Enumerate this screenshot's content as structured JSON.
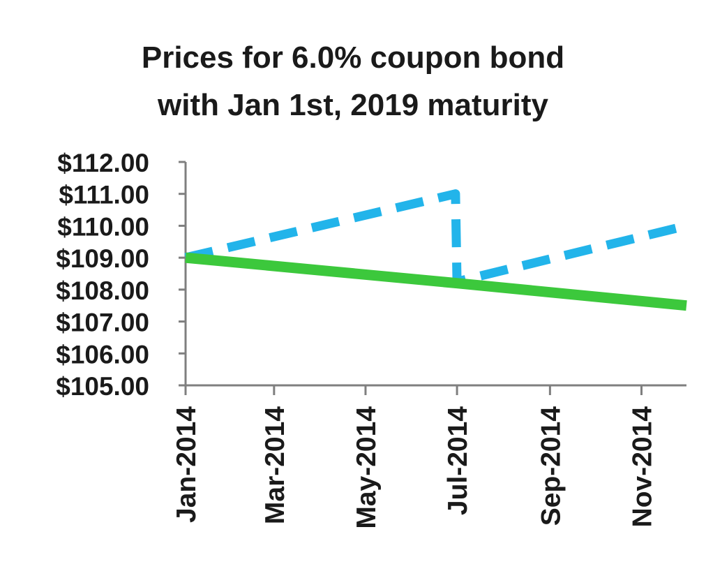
{
  "chart_data": {
    "type": "line",
    "title_lines": [
      "Prices for 6.0% coupon  bond",
      "with Jan 1st, 2019 maturity"
    ],
    "xlabel": "",
    "ylabel": "",
    "x_tick_labels": [
      "Jan-2014",
      "Mar-2014",
      "May-2014",
      "Jul-2014",
      "Sep-2014",
      "Nov-2014"
    ],
    "y_tick_labels": [
      "$112.00",
      "$111.00",
      "$110.00",
      "$109.00",
      "$108.00",
      "$107.00",
      "$106.00",
      "$105.00"
    ],
    "ylim": [
      105,
      112
    ],
    "xlim": [
      "2014-01-01",
      "2014-12-01"
    ],
    "grid": false,
    "legend": "none",
    "series": [
      {
        "style": "dashed",
        "color": "#22b4ea",
        "points": [
          {
            "x": "2014-01-01",
            "y": 109.0
          },
          {
            "x": "2014-06-30",
            "y": 111.0
          },
          {
            "x": "2014-07-01",
            "y": 108.25
          },
          {
            "x": "2014-12-01",
            "y": 110.0
          }
        ]
      },
      {
        "style": "solid",
        "color": "#3cc83c",
        "points": [
          {
            "x": "2014-01-01",
            "y": 109.0
          },
          {
            "x": "2014-07-01",
            "y": 108.2
          },
          {
            "x": "2014-12-01",
            "y": 107.5
          }
        ]
      }
    ]
  }
}
